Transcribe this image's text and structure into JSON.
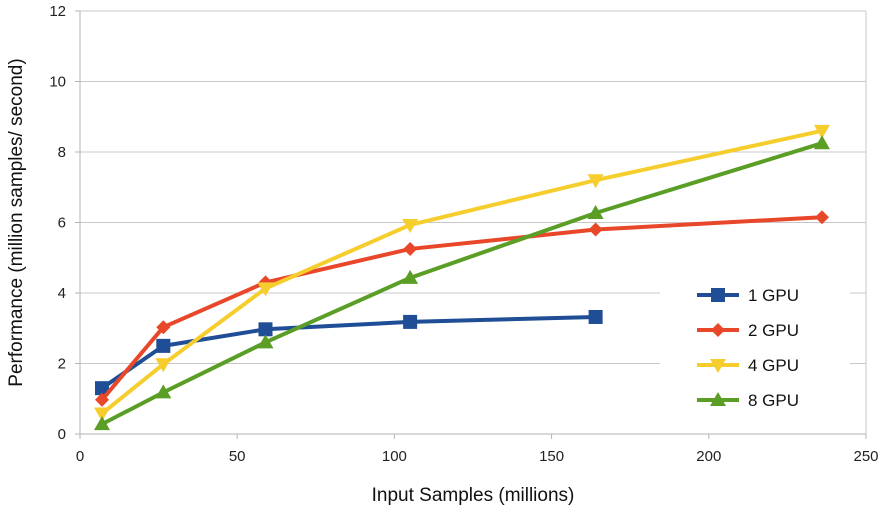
{
  "chart_data": {
    "type": "line",
    "title": "",
    "xlabel": "Input Samples (millions)",
    "ylabel": "Performance (million samples/ second)",
    "xlim": [
      0,
      250
    ],
    "ylim": [
      0,
      12
    ],
    "x_ticks": [
      0,
      50,
      100,
      150,
      200,
      250
    ],
    "y_ticks": [
      0,
      2,
      4,
      6,
      8,
      10,
      12
    ],
    "x_tick_labels": [
      "0",
      "50",
      "100",
      "150",
      "200",
      "250"
    ],
    "y_tick_labels": [
      "0",
      "2",
      "4",
      "6",
      "8",
      "10",
      "12"
    ],
    "grid": "horizontal",
    "legend_position": "right",
    "series": [
      {
        "name": "1 GPU",
        "color": "#1F4E96",
        "marker": "square",
        "points": [
          [
            7,
            1.3
          ],
          [
            26.5,
            2.5
          ],
          [
            59,
            2.97
          ],
          [
            105,
            3.18
          ],
          [
            164,
            3.32
          ]
        ]
      },
      {
        "name": "2 GPU",
        "color": "#E8472A",
        "marker": "diamond",
        "points": [
          [
            7,
            0.97
          ],
          [
            26.5,
            3.03
          ],
          [
            59,
            4.3
          ],
          [
            105,
            5.25
          ],
          [
            164,
            5.8
          ],
          [
            236,
            6.15
          ]
        ]
      },
      {
        "name": "4 GPU",
        "color": "#F5CE2E",
        "marker": "triangle-down",
        "points": [
          [
            7,
            0.58
          ],
          [
            26.5,
            1.98
          ],
          [
            59,
            4.13
          ],
          [
            105,
            5.93
          ],
          [
            164,
            7.2
          ],
          [
            236,
            8.6
          ]
        ]
      },
      {
        "name": "8 GPU",
        "color": "#5A9E26",
        "marker": "triangle-up",
        "points": [
          [
            7,
            0.28
          ],
          [
            26.5,
            1.18
          ],
          [
            59,
            2.6
          ],
          [
            105,
            4.43
          ],
          [
            164,
            6.27
          ],
          [
            236,
            8.25
          ]
        ]
      }
    ]
  }
}
